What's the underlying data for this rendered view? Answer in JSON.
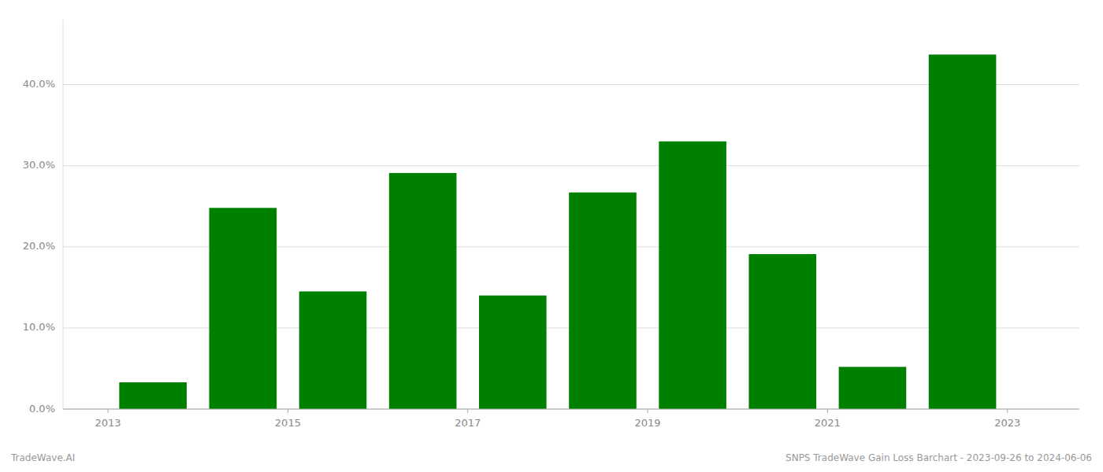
{
  "chart_data": {
    "type": "bar",
    "x": [
      2013.5,
      2014.5,
      2015.5,
      2016.5,
      2017.5,
      2018.5,
      2019.5,
      2020.5,
      2021.5,
      2022.5
    ],
    "values": [
      0.033,
      0.248,
      0.145,
      0.291,
      0.14,
      0.267,
      0.33,
      0.191,
      0.052,
      0.437
    ],
    "color": "#008000",
    "xlim": [
      2012.5,
      2023.8
    ],
    "xticks": [
      2013,
      2015,
      2017,
      2019,
      2021,
      2023
    ],
    "ylim": [
      0,
      0.48
    ],
    "yticks": [
      {
        "value": 0,
        "label": "0.0%"
      },
      {
        "value": 0.1,
        "label": "10.0%"
      },
      {
        "value": 0.2,
        "label": "20.0%"
      },
      {
        "value": 0.3,
        "label": "30.0%"
      },
      {
        "value": 0.4,
        "label": "40.0%"
      }
    ],
    "grid": true,
    "annotations": [
      "TradeWave.AI",
      "SNPS TradeWave Gain Loss Barchart - 2023-09-26 to 2024-06-06"
    ]
  }
}
